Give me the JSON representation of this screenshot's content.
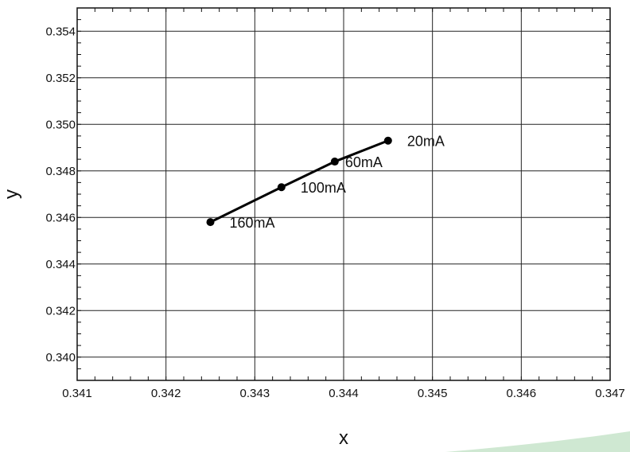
{
  "chart_data": {
    "type": "line",
    "title": "",
    "xlabel": "x",
    "ylabel": "y",
    "xlim": [
      0.341,
      0.347
    ],
    "ylim": [
      0.339,
      0.355
    ],
    "x_ticks": [
      0.341,
      0.342,
      0.343,
      0.344,
      0.345,
      0.346,
      0.347
    ],
    "x_tick_labels": [
      "0.341",
      "0.342",
      "0.343",
      "0.344",
      "0.345",
      "0.346",
      "0.347"
    ],
    "y_ticks": [
      0.34,
      0.342,
      0.344,
      0.346,
      0.348,
      0.35,
      0.352,
      0.354
    ],
    "y_tick_labels": [
      "0.340",
      "0.342",
      "0.344",
      "0.346",
      "0.348",
      "0.350",
      "0.352",
      "0.354"
    ],
    "grid": true,
    "series": [
      {
        "color": "#000000",
        "x": [
          0.3445,
          0.3439,
          0.3433,
          0.3425
        ],
        "y": [
          0.3493,
          0.3484,
          0.3473,
          0.3458
        ],
        "point_labels": [
          "20mA",
          "60mA",
          "100mA",
          "160mA"
        ]
      }
    ]
  },
  "decoration": {
    "accent_color": "#cfe8d2"
  }
}
